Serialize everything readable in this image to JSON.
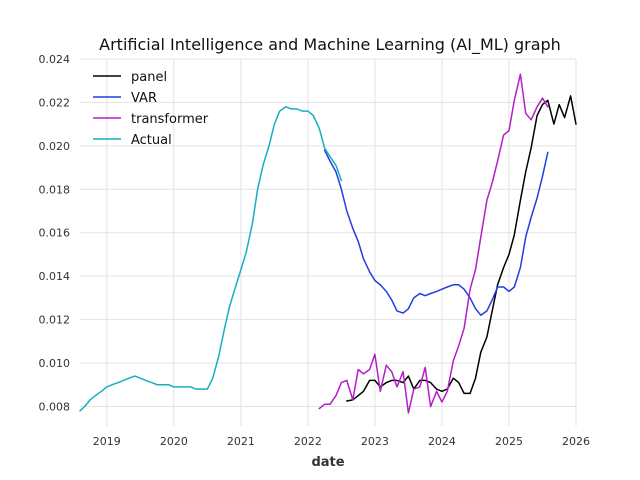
{
  "chart_data": {
    "type": "line",
    "title": "Artificial Intelligence and Machine Learning (AI_ML) graph",
    "xlabel": "date",
    "ylabel": "",
    "xlim": [
      2018.6,
      2026.0
    ],
    "ylim": [
      0.0071,
      0.024
    ],
    "x_ticks": [
      2019,
      2020,
      2021,
      2022,
      2023,
      2024,
      2025,
      2026
    ],
    "x_tick_labels": [
      "2019",
      "2020",
      "2021",
      "2022",
      "2023",
      "2024",
      "2025",
      "2026"
    ],
    "y_ticks": [
      0.008,
      0.01,
      0.012,
      0.014,
      0.016,
      0.018,
      0.02,
      0.022,
      0.024
    ],
    "y_tick_labels": [
      "0.008",
      "0.010",
      "0.012",
      "0.014",
      "0.016",
      "0.018",
      "0.020",
      "0.022",
      "0.024"
    ],
    "grid": true,
    "legend_position": "top-left",
    "series": [
      {
        "name": "panel",
        "color": "#000000",
        "points": [
          [
            2022.58,
            0.00825
          ],
          [
            2022.67,
            0.0083
          ],
          [
            2022.75,
            0.0085
          ],
          [
            2022.83,
            0.0087
          ],
          [
            2022.92,
            0.0092
          ],
          [
            2023.0,
            0.0092
          ],
          [
            2023.08,
            0.0089
          ],
          [
            2023.17,
            0.0091
          ],
          [
            2023.25,
            0.0092
          ],
          [
            2023.33,
            0.0092
          ],
          [
            2023.42,
            0.0091
          ],
          [
            2023.5,
            0.0094
          ],
          [
            2023.58,
            0.0088
          ],
          [
            2023.67,
            0.0092
          ],
          [
            2023.75,
            0.0092
          ],
          [
            2023.83,
            0.0091
          ],
          [
            2023.92,
            0.0088
          ],
          [
            2024.0,
            0.0087
          ],
          [
            2024.08,
            0.0088
          ],
          [
            2024.17,
            0.0093
          ],
          [
            2024.25,
            0.0091
          ],
          [
            2024.33,
            0.0086
          ],
          [
            2024.42,
            0.0086
          ],
          [
            2024.5,
            0.0093
          ],
          [
            2024.58,
            0.0105
          ],
          [
            2024.67,
            0.0112
          ],
          [
            2024.75,
            0.0124
          ],
          [
            2024.83,
            0.0136
          ],
          [
            2024.92,
            0.0144
          ],
          [
            2025.0,
            0.015
          ],
          [
            2025.08,
            0.0159
          ],
          [
            2025.17,
            0.0175
          ],
          [
            2025.25,
            0.0188
          ],
          [
            2025.33,
            0.0199
          ],
          [
            2025.42,
            0.0214
          ],
          [
            2025.5,
            0.0219
          ],
          [
            2025.58,
            0.0221
          ],
          [
            2025.67,
            0.021
          ],
          [
            2025.75,
            0.0219
          ],
          [
            2025.83,
            0.0213
          ],
          [
            2025.92,
            0.0223
          ],
          [
            2026.0,
            0.021
          ]
        ]
      },
      {
        "name": "VAR",
        "color": "#1f3fe0",
        "points": [
          [
            2022.25,
            0.0198
          ],
          [
            2022.33,
            0.0193
          ],
          [
            2022.42,
            0.0188
          ],
          [
            2022.5,
            0.018
          ],
          [
            2022.58,
            0.017
          ],
          [
            2022.67,
            0.0162
          ],
          [
            2022.75,
            0.0156
          ],
          [
            2022.83,
            0.0148
          ],
          [
            2022.92,
            0.0142
          ],
          [
            2023.0,
            0.0138
          ],
          [
            2023.08,
            0.0136
          ],
          [
            2023.17,
            0.0133
          ],
          [
            2023.25,
            0.0129
          ],
          [
            2023.33,
            0.0124
          ],
          [
            2023.42,
            0.0123
          ],
          [
            2023.5,
            0.0125
          ],
          [
            2023.58,
            0.013
          ],
          [
            2023.67,
            0.0132
          ],
          [
            2023.75,
            0.0131
          ],
          [
            2023.83,
            0.0132
          ],
          [
            2023.92,
            0.0133
          ],
          [
            2024.0,
            0.0134
          ],
          [
            2024.08,
            0.0135
          ],
          [
            2024.17,
            0.0136
          ],
          [
            2024.25,
            0.0136
          ],
          [
            2024.33,
            0.0134
          ],
          [
            2024.42,
            0.013
          ],
          [
            2024.5,
            0.0125
          ],
          [
            2024.58,
            0.0122
          ],
          [
            2024.67,
            0.0124
          ],
          [
            2024.75,
            0.0129
          ],
          [
            2024.83,
            0.0135
          ],
          [
            2024.92,
            0.0135
          ],
          [
            2025.0,
            0.0133
          ],
          [
            2025.08,
            0.0135
          ],
          [
            2025.17,
            0.0144
          ],
          [
            2025.25,
            0.0158
          ],
          [
            2025.33,
            0.0167
          ],
          [
            2025.42,
            0.0176
          ],
          [
            2025.5,
            0.0186
          ],
          [
            2025.58,
            0.0197
          ]
        ]
      },
      {
        "name": "transformer",
        "color": "#b41ec8",
        "points": [
          [
            2022.17,
            0.0079
          ],
          [
            2022.25,
            0.0081
          ],
          [
            2022.33,
            0.0081
          ],
          [
            2022.42,
            0.0085
          ],
          [
            2022.5,
            0.0091
          ],
          [
            2022.58,
            0.0092
          ],
          [
            2022.67,
            0.0083
          ],
          [
            2022.75,
            0.0097
          ],
          [
            2022.83,
            0.0095
          ],
          [
            2022.92,
            0.0097
          ],
          [
            2023.0,
            0.0104
          ],
          [
            2023.08,
            0.0087
          ],
          [
            2023.17,
            0.0099
          ],
          [
            2023.25,
            0.0096
          ],
          [
            2023.33,
            0.0089
          ],
          [
            2023.42,
            0.0096
          ],
          [
            2023.5,
            0.0077
          ],
          [
            2023.58,
            0.0088
          ],
          [
            2023.67,
            0.0089
          ],
          [
            2023.75,
            0.0098
          ],
          [
            2023.83,
            0.008
          ],
          [
            2023.92,
            0.0087
          ],
          [
            2024.0,
            0.0082
          ],
          [
            2024.08,
            0.0087
          ],
          [
            2024.17,
            0.0101
          ],
          [
            2024.25,
            0.0108
          ],
          [
            2024.33,
            0.0116
          ],
          [
            2024.42,
            0.0134
          ],
          [
            2024.5,
            0.0143
          ],
          [
            2024.58,
            0.0158
          ],
          [
            2024.67,
            0.0175
          ],
          [
            2024.75,
            0.0183
          ],
          [
            2024.83,
            0.0193
          ],
          [
            2024.92,
            0.0205
          ],
          [
            2025.0,
            0.0207
          ],
          [
            2025.08,
            0.0221
          ],
          [
            2025.17,
            0.0233
          ],
          [
            2025.25,
            0.0215
          ],
          [
            2025.33,
            0.0212
          ],
          [
            2025.42,
            0.0218
          ],
          [
            2025.5,
            0.0222
          ],
          [
            2025.58,
            0.0218
          ]
        ]
      },
      {
        "name": "Actual",
        "color": "#17aebe",
        "points": [
          [
            2018.6,
            0.0078
          ],
          [
            2018.67,
            0.008
          ],
          [
            2018.75,
            0.0083
          ],
          [
            2018.83,
            0.0085
          ],
          [
            2018.92,
            0.0087
          ],
          [
            2019.0,
            0.0089
          ],
          [
            2019.08,
            0.009
          ],
          [
            2019.17,
            0.0091
          ],
          [
            2019.25,
            0.0092
          ],
          [
            2019.33,
            0.0093
          ],
          [
            2019.42,
            0.0094
          ],
          [
            2019.5,
            0.0093
          ],
          [
            2019.58,
            0.0092
          ],
          [
            2019.67,
            0.0091
          ],
          [
            2019.75,
            0.009
          ],
          [
            2019.83,
            0.009
          ],
          [
            2019.92,
            0.009
          ],
          [
            2020.0,
            0.0089
          ],
          [
            2020.08,
            0.0089
          ],
          [
            2020.17,
            0.0089
          ],
          [
            2020.25,
            0.0089
          ],
          [
            2020.33,
            0.0088
          ],
          [
            2020.42,
            0.0088
          ],
          [
            2020.5,
            0.0088
          ],
          [
            2020.58,
            0.0093
          ],
          [
            2020.67,
            0.0103
          ],
          [
            2020.75,
            0.0115
          ],
          [
            2020.83,
            0.0126
          ],
          [
            2020.92,
            0.0135
          ],
          [
            2021.0,
            0.0143
          ],
          [
            2021.08,
            0.0151
          ],
          [
            2021.17,
            0.0164
          ],
          [
            2021.25,
            0.018
          ],
          [
            2021.33,
            0.0191
          ],
          [
            2021.42,
            0.02
          ],
          [
            2021.5,
            0.021
          ],
          [
            2021.58,
            0.0216
          ],
          [
            2021.67,
            0.0218
          ],
          [
            2021.75,
            0.0217
          ],
          [
            2021.83,
            0.0217
          ],
          [
            2021.92,
            0.0216
          ],
          [
            2022.0,
            0.0216
          ],
          [
            2022.08,
            0.0214
          ],
          [
            2022.17,
            0.0208
          ],
          [
            2022.25,
            0.0199
          ],
          [
            2022.33,
            0.0195
          ],
          [
            2022.42,
            0.0191
          ],
          [
            2022.5,
            0.0184
          ]
        ]
      }
    ]
  }
}
